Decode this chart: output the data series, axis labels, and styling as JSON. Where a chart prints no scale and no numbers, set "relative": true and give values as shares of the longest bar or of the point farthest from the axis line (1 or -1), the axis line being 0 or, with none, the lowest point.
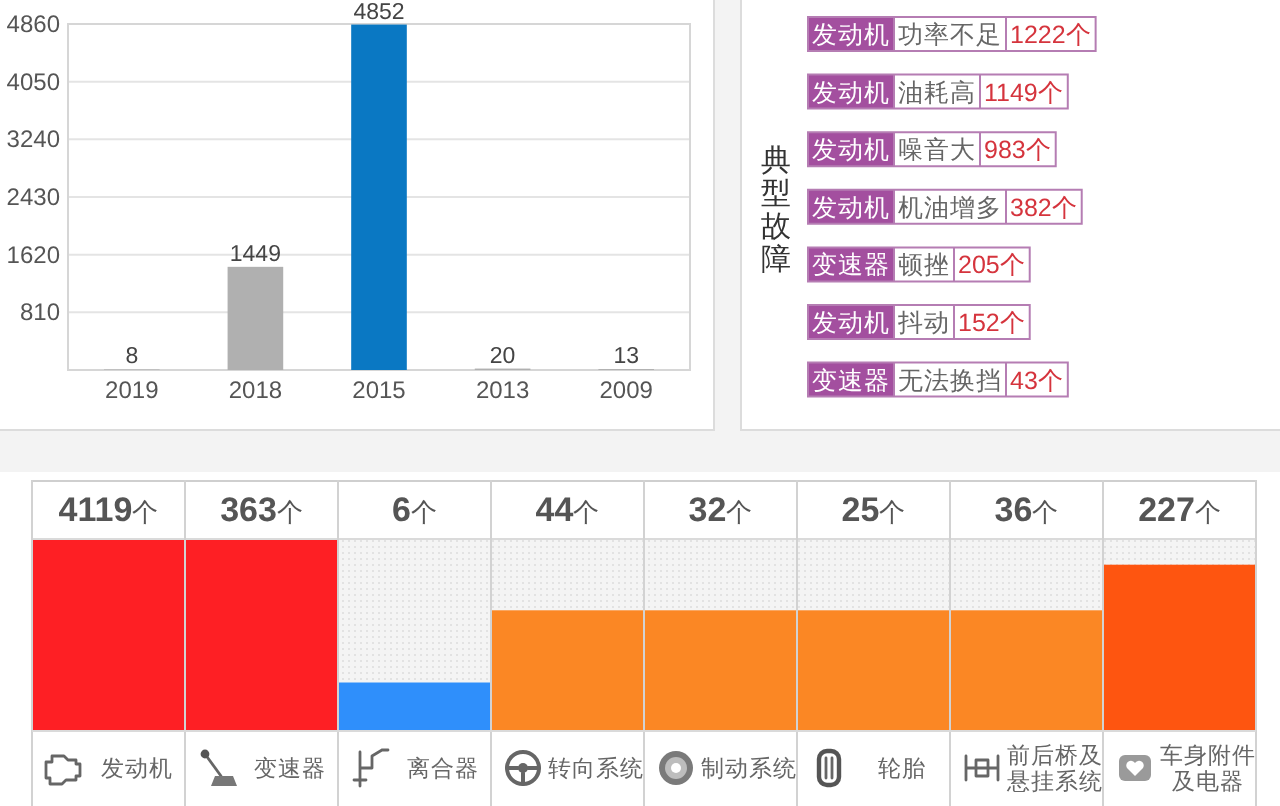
{
  "chart_data": [
    {
      "type": "bar",
      "categories": [
        "2019",
        "2018",
        "2015",
        "2013",
        "2009"
      ],
      "values": [
        8,
        1449,
        4852,
        20,
        13
      ],
      "colors": [
        "#b0b0b0",
        "#b0b0b0",
        "#0a78c3",
        "#b0b0b0",
        "#b0b0b0"
      ],
      "ylim": [
        0,
        4860
      ],
      "yticks": [
        810,
        1620,
        2430,
        3240,
        4050,
        4860
      ],
      "grid": "y",
      "data_labels": true
    },
    {
      "type": "other",
      "title": "典型故障",
      "categories": [
        "功率不足",
        "油耗高",
        "噪音大",
        "机油增多",
        "顿挫",
        "抖动",
        "无法换挡"
      ],
      "value_labels": [
        "1222个",
        "1149个",
        "983个",
        "382个",
        "205个",
        "152个",
        "43个"
      ],
      "annotations": [
        "发动机",
        "发动机",
        "发动机",
        "发动机",
        "变速器",
        "发动机",
        "变速器"
      ]
    },
    {
      "type": "bar",
      "relative": true,
      "categories": [
        "发动机",
        "变速器",
        "离合器",
        "转向系统",
        "制动系统",
        "轮胎",
        "前后桥及悬挂系统",
        "车身附件及电器"
      ],
      "values": [
        1,
        1,
        0.25,
        0.63,
        0.63,
        0.63,
        0.63,
        0.87
      ],
      "annotations": [
        "4119个",
        "363个",
        "6个",
        "44个",
        "32个",
        "25个",
        "36个",
        "227个"
      ],
      "colors": [
        "#fe1f24",
        "#fe1f24",
        "#2f8ffb",
        "#fb8724",
        "#fb8724",
        "#fb8724",
        "#fb8724",
        "#fe5510"
      ]
    }
  ]
}
